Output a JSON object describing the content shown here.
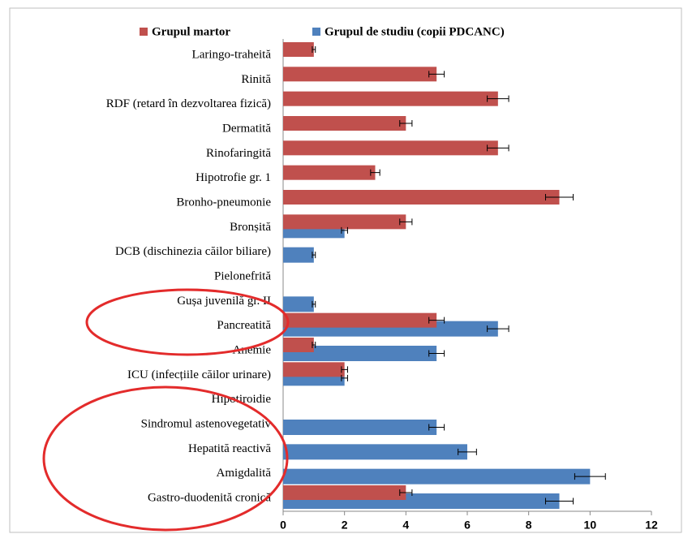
{
  "chart_data": {
    "type": "hbar",
    "categories": [
      "Laringo-traheită",
      "Rinită",
      "RDF (retard în dezvoltarea fizică)",
      "Dermatită",
      "Rinofaringită",
      "Hipotrofie gr. 1",
      "Bronho-pneumonie",
      "Bronșită",
      "DCB (dischinezia căilor biliare)",
      "Pielonefrită",
      "Gușa juvenilă gr. II",
      "Pancreatită",
      "Anemie",
      "ICU (infecțiile căilor urinare)",
      "Hipotiroidie",
      "Sindromul astenovegetativ",
      "Hepatită reactivă",
      "Amigdalită",
      "Gastro-duodenită cronică"
    ],
    "series": [
      {
        "name": "Grupul martor",
        "color": "#c0504d",
        "values": [
          1,
          5,
          7,
          4,
          7,
          3,
          9,
          4,
          0,
          0,
          0,
          5,
          1,
          2,
          0,
          0,
          0,
          0,
          4
        ],
        "errors": [
          0.05,
          0.25,
          0.35,
          0.2,
          0.35,
          0.15,
          0.45,
          0.2,
          0,
          0,
          0,
          0.25,
          0.05,
          0.1,
          0,
          0,
          0,
          0,
          0.2
        ]
      },
      {
        "name": "Grupul de studiu (copii PDCANC)",
        "color": "#4f81bd",
        "values": [
          0,
          0,
          0,
          0,
          0,
          0,
          0,
          2,
          1,
          0,
          1,
          7,
          5,
          2,
          0,
          5,
          6,
          10,
          9
        ],
        "errors": [
          0,
          0,
          0,
          0,
          0,
          0,
          0,
          0.1,
          0.05,
          0,
          0.05,
          0.35,
          0.25,
          0.1,
          0,
          0.25,
          0.3,
          0.5,
          0.45
        ]
      }
    ],
    "xlim": [
      0,
      12
    ],
    "xticks": [
      0,
      2,
      4,
      6,
      8,
      10,
      12
    ],
    "legend": "top"
  }
}
